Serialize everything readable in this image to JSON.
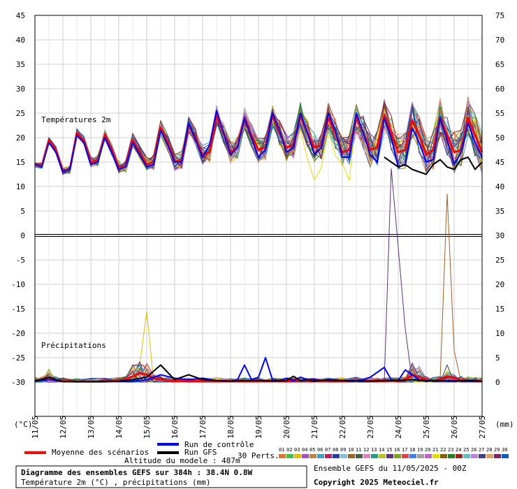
{
  "chart_data": {
    "type": "line",
    "left_axis": {
      "unit_label": "(°C)",
      "min": -30,
      "max": 45,
      "ticks": [
        45,
        40,
        35,
        30,
        25,
        20,
        15,
        10,
        5,
        0,
        -5,
        -10,
        -15,
        -20,
        -25,
        -30
      ]
    },
    "right_axis": {
      "unit_label": "(mm)",
      "ticks": [
        75,
        70,
        65,
        60,
        55,
        50,
        45,
        40,
        35,
        30,
        25,
        20,
        15,
        10,
        5,
        0
      ]
    },
    "x_labels": [
      "11/05",
      "12/05",
      "13/05",
      "14/05",
      "15/05",
      "16/05",
      "17/05",
      "18/05",
      "19/05",
      "20/05",
      "21/05",
      "22/05",
      "23/05",
      "24/05",
      "25/05",
      "26/05",
      "27/05"
    ],
    "panel_labels": {
      "temperature": "Températures 2m",
      "precipitation": "Précipitations"
    },
    "grid": true,
    "series": [
      {
        "name": "Moyenne des scénarios",
        "role": "temperature",
        "color": "#ff0000",
        "x": [
          0,
          0.25,
          0.5,
          0.75,
          1,
          1.25,
          1.5,
          1.75,
          2,
          2.25,
          2.5,
          2.75,
          3,
          3.25,
          3.5,
          3.75,
          4,
          4.25,
          4.5,
          4.75,
          5,
          5.25,
          5.5,
          5.75,
          6,
          6.25,
          6.5,
          6.75,
          7,
          7.25,
          7.5,
          7.75,
          8,
          8.25,
          8.5,
          8.75,
          9,
          9.25,
          9.5,
          9.75,
          10,
          10.25,
          10.5,
          10.75,
          11,
          11.25,
          11.5,
          11.75,
          12,
          12.25,
          12.5,
          12.75,
          13,
          13.25,
          13.5,
          13.75,
          14,
          14.25,
          14.5,
          14.75,
          15,
          15.25,
          15.5,
          15.75,
          16
        ],
        "values": [
          14.5,
          14.3,
          19.5,
          17.5,
          13.2,
          13.5,
          21,
          19.5,
          15,
          15.3,
          20.5,
          17.5,
          14,
          14.2,
          19.5,
          17,
          14.5,
          15,
          22,
          19,
          15,
          15.5,
          22.5,
          20,
          16.5,
          17,
          24.5,
          21,
          17,
          18,
          24,
          20.5,
          17.5,
          18,
          24.5,
          21,
          18,
          18.5,
          24.5,
          21,
          18,
          18.5,
          24,
          21,
          17,
          17.5,
          24,
          21,
          17.5,
          18,
          24.5,
          21,
          17,
          17.5,
          23.5,
          20.5,
          16.5,
          17.5,
          24,
          20.5,
          17,
          17.5,
          24,
          20.5,
          17
        ]
      },
      {
        "name": "Run de contrôle",
        "role": "temperature",
        "color": "#0000ff",
        "x": [
          0,
          0.25,
          0.5,
          0.75,
          1,
          1.25,
          1.5,
          1.75,
          2,
          2.25,
          2.5,
          2.75,
          3,
          3.25,
          3.5,
          3.75,
          4,
          4.25,
          4.5,
          4.75,
          5,
          5.25,
          5.5,
          5.75,
          6,
          6.25,
          6.5,
          6.75,
          7,
          7.25,
          7.5,
          7.75,
          8,
          8.25,
          8.5,
          8.75,
          9,
          9.25,
          9.5,
          9.75,
          10,
          10.25,
          10.5,
          10.75,
          11,
          11.25,
          11.5,
          11.75,
          12,
          12.25,
          12.5,
          12.75,
          13,
          13.25,
          13.5,
          13.75,
          14,
          14.25,
          14.5,
          14.75,
          15,
          15.25,
          15.5,
          15.75,
          16
        ],
        "values": [
          14.5,
          14,
          19,
          17,
          13,
          13.5,
          20.5,
          19,
          14.5,
          15,
          20,
          17,
          13.5,
          14,
          19,
          16.5,
          14,
          14.5,
          21.5,
          18.5,
          15,
          15,
          23,
          19.5,
          16,
          18.5,
          25.5,
          21,
          16.5,
          18,
          24,
          20,
          16,
          17.5,
          25,
          21.5,
          17,
          18,
          25,
          21,
          16.5,
          18,
          25,
          21.5,
          16,
          16,
          25,
          21,
          16.5,
          15,
          24,
          20,
          14,
          14.5,
          22,
          19,
          15,
          15.5,
          24,
          19.5,
          14.5,
          17,
          23,
          19,
          16
        ]
      },
      {
        "name": "Run GFS",
        "role": "temperature",
        "color": "#000000",
        "x": [
          12.5,
          12.75,
          13,
          13.25,
          13.5,
          13.75,
          14,
          14.25,
          14.5,
          14.75,
          15,
          15.25,
          15.5,
          15.75,
          16
        ],
        "values": [
          16,
          15,
          14,
          14.5,
          13.5,
          13,
          12.5,
          14.5,
          15.5,
          14,
          13.5,
          15.5,
          16,
          13.5,
          15
        ]
      },
      {
        "name": "Moyenne des scénarios (précip)",
        "role": "precipitation",
        "color": "#ff0000",
        "x": [
          0,
          0.25,
          0.5,
          0.75,
          1,
          1.5,
          2,
          2.5,
          3,
          3.25,
          3.5,
          3.75,
          4,
          4.25,
          4.5,
          4.75,
          5,
          5.5,
          6,
          6.5,
          7,
          7.5,
          8,
          8.5,
          9,
          9.5,
          10,
          10.5,
          11,
          11.5,
          12,
          12.25,
          12.5,
          12.75,
          13,
          13.25,
          13.5,
          13.75,
          14,
          14.25,
          14.5,
          14.75,
          15,
          15.25,
          15.5,
          15.75,
          16
        ],
        "values": [
          0.3,
          0.5,
          1,
          0.4,
          0.2,
          0.1,
          0.1,
          0.1,
          0.3,
          0.5,
          1.2,
          1.8,
          1.5,
          0.8,
          0.5,
          0.3,
          0.2,
          0.2,
          0.2,
          0.2,
          0.2,
          0.2,
          0.2,
          0.2,
          0.2,
          0.3,
          0.2,
          0.2,
          0.2,
          0.3,
          0.3,
          0.2,
          0.2,
          0.3,
          0.2,
          0.5,
          1.5,
          1,
          0.5,
          0.3,
          0.5,
          1.2,
          0.8,
          0.5,
          0.4,
          0.3,
          0.2
        ]
      },
      {
        "name": "Run de contrôle (précip)",
        "role": "precipitation",
        "color": "#0000ff",
        "x": [
          0,
          0.5,
          1,
          2,
          3,
          3.5,
          4,
          4.5,
          5,
          5.5,
          6,
          6.5,
          7,
          7.25,
          7.5,
          7.75,
          8,
          8.25,
          8.5,
          8.75,
          9,
          9.25,
          9.5,
          9.75,
          10,
          10.5,
          11,
          11.5,
          11.75,
          12,
          12.25,
          12.5,
          12.75,
          13,
          13.25,
          13.5,
          13.75,
          14,
          14.5,
          15,
          15.5,
          16
        ],
        "values": [
          0.2,
          0.5,
          0.1,
          0.1,
          0.1,
          0.2,
          0.5,
          1.5,
          0.8,
          0.5,
          0.8,
          0.3,
          0.2,
          0.5,
          3.5,
          0.5,
          1,
          5,
          0.5,
          0.3,
          0.8,
          0.3,
          1,
          0.5,
          0.5,
          0.3,
          0.3,
          0.3,
          0.5,
          1,
          2,
          3,
          0.5,
          0.3,
          2.5,
          1.5,
          0.5,
          0.3,
          0.2,
          0.3,
          0.2,
          0.2
        ]
      },
      {
        "name": "Run GFS (précip)",
        "role": "precipitation",
        "color": "#000000",
        "x": [
          0,
          0.5,
          1,
          2,
          3,
          3.5,
          4,
          4.5,
          5,
          5.5,
          6,
          6.5,
          7,
          7.5,
          8,
          8.5,
          9,
          9.25,
          9.5,
          9.75,
          10,
          10.5,
          11,
          11.5,
          12,
          12.5,
          13,
          13.5,
          14,
          14.5,
          15,
          15.5,
          16
        ],
        "values": [
          0.2,
          1,
          0.1,
          0.1,
          0.2,
          0.5,
          1,
          3.5,
          0.5,
          1.5,
          0.5,
          0.3,
          0.2,
          0.3,
          0.3,
          0.2,
          0.3,
          1.2,
          0.3,
          0.5,
          0.2,
          0.5,
          0.3,
          0.2,
          0.2,
          0.3,
          0.3,
          0.5,
          0.2,
          0.3,
          0.2,
          0.3,
          0.2
        ]
      }
    ],
    "members": {
      "label": "30 Perts.",
      "ids": [
        "01",
        "02",
        "03",
        "04",
        "05",
        "06",
        "07",
        "08",
        "09",
        "10",
        "11",
        "12",
        "13",
        "14",
        "15",
        "16",
        "17",
        "18",
        "19",
        "20",
        "21",
        "22",
        "23",
        "24",
        "25",
        "26",
        "27",
        "28",
        "29",
        "30"
      ],
      "colors": [
        "#e07030",
        "#40c040",
        "#e0c000",
        "#a050c0",
        "#c08040",
        "#40a0c0",
        "#c02060",
        "#2040a0",
        "#80c0e0",
        "#a06020",
        "#406040",
        "#e080c0",
        "#20a080",
        "#c0c020",
        "#603080",
        "#80a020",
        "#e04040",
        "#4080e0",
        "#a0a0a0",
        "#c060c0",
        "#e0e000",
        "#806000",
        "#208020",
        "#a02020",
        "#60c0c0",
        "#c080e0",
        "#404080",
        "#e0a060",
        "#802060",
        "#0060c0"
      ]
    },
    "legend": {
      "mean": "Moyenne des scénarios",
      "control": "Run de contrôle",
      "gfs": "Run GFS",
      "altitude": "Altitude du modele : 487m"
    }
  },
  "footer": {
    "title": "Diagramme des ensembles GEFS sur 384h : 38.4N 0.8W",
    "subtitle": "Température 2m (°C) , précipitations (mm)",
    "run_info": "Ensemble GEFS du 11/05/2025 - 00Z",
    "copyright": "Copyright 2025 Meteociel.fr"
  }
}
